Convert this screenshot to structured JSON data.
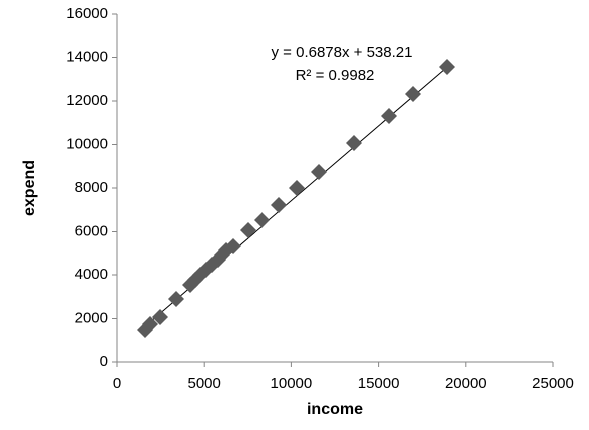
{
  "chart_data": {
    "type": "scatter",
    "x_label": "income",
    "y_label": "expend",
    "x": [
      1605,
      1892,
      2466,
      3383,
      4186,
      4472,
      4759,
      5103,
      5447,
      5791,
      6020,
      6250,
      6651,
      7511,
      8314,
      9289,
      10321,
      11583,
      13589,
      15596,
      16972,
      18922
    ],
    "series": [
      {
        "color": "#5a5a5a",
        "values": [
          1471,
          1747,
          2069,
          2897,
          3540,
          3770,
          4000,
          4230,
          4460,
          4690,
          4920,
          5150,
          5333,
          6069,
          6529,
          7218,
          8000,
          8736,
          10069,
          11310,
          12322,
          13563
        ]
      }
    ],
    "trendline": {
      "slope": 0.6878,
      "intercept": 538.21,
      "equation": "y = 0.6878x + 538.21",
      "r_squared": "R² = 0.9982",
      "color": "#000000"
    },
    "xlim": [
      0,
      25000
    ],
    "xticks": [
      0,
      5000,
      10000,
      15000,
      20000,
      25000
    ],
    "ylim": [
      0,
      16000
    ],
    "yticks": [
      0,
      2000,
      4000,
      6000,
      8000,
      10000,
      12000,
      14000,
      16000
    ],
    "grid": false
  }
}
